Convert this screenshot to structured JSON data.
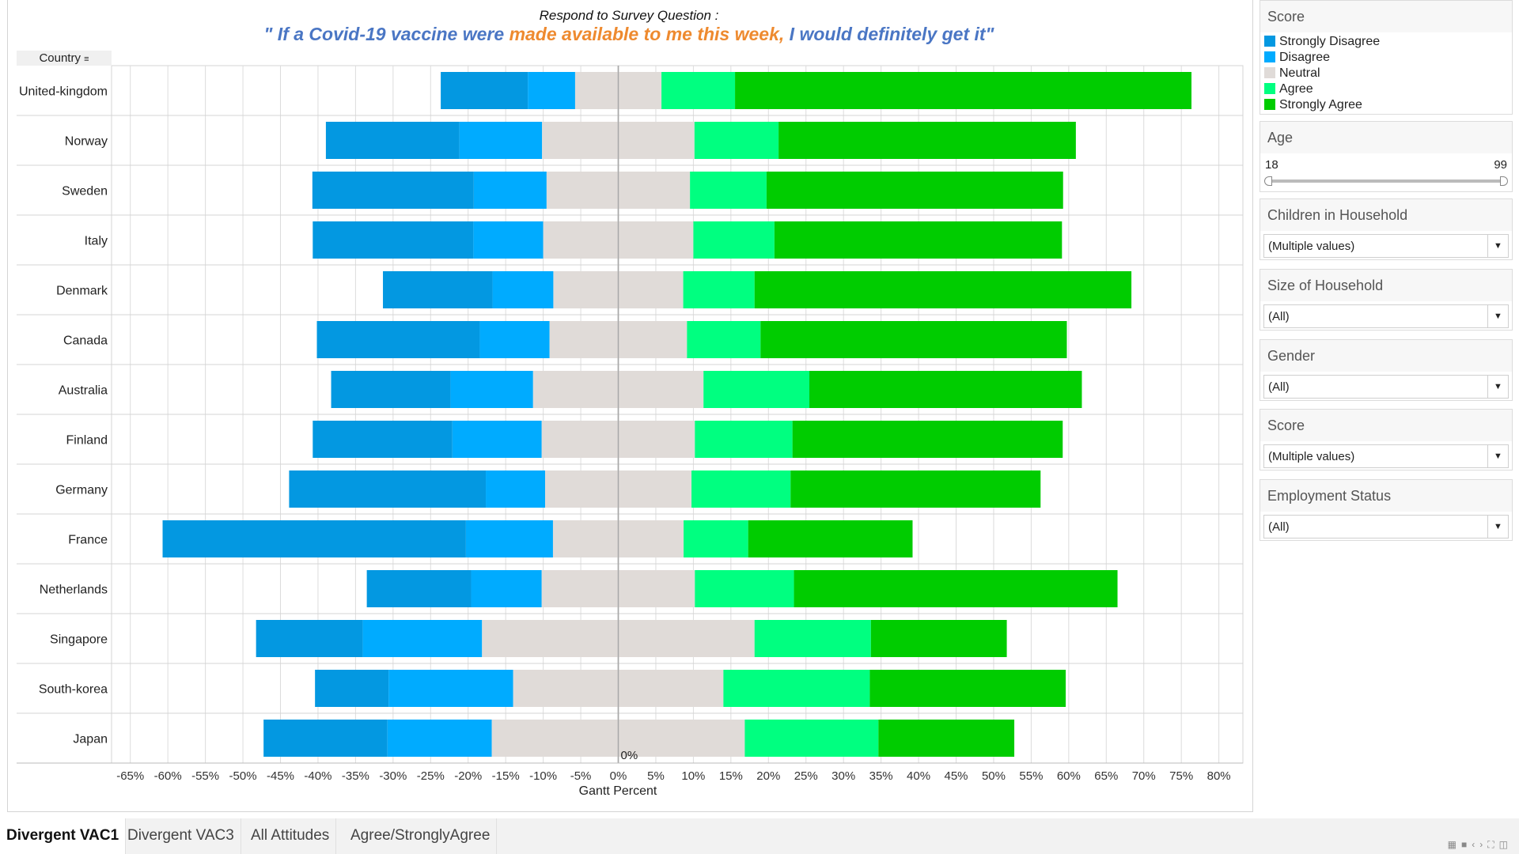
{
  "chart_data": {
    "type": "bar",
    "orientation": "horizontal-diverging-stacked",
    "title_line1": "Respond to Survey Question :",
    "title_line2_parts": [
      "\" If a Covid-19 vaccine were ",
      "made available to me this week,",
      " I would definitely get it\""
    ],
    "xlabel": "Gantt Percent",
    "row_header": "Country",
    "xlim": [
      -67.5,
      83.2
    ],
    "xticks": [
      -65,
      -60,
      -55,
      -50,
      -45,
      -40,
      -35,
      -30,
      -25,
      -20,
      -15,
      -10,
      -5,
      0,
      5,
      10,
      15,
      20,
      25,
      30,
      35,
      40,
      45,
      50,
      55,
      60,
      65,
      70,
      75,
      80
    ],
    "zero_label": "0%",
    "grid": true,
    "legend_placement": "right",
    "categories": [
      "United-kingdom",
      "Norway",
      "Sweden",
      "Italy",
      "Denmark",
      "Canada",
      "Australia",
      "Finland",
      "Germany",
      "France",
      "Netherlands",
      "Singapore",
      "South-korea",
      "Japan"
    ],
    "series": [
      {
        "name": "Strongly Disagree",
        "color": "#0398e1",
        "values": [
          11.6,
          17.8,
          21.5,
          21.4,
          14.6,
          21.7,
          15.9,
          18.6,
          26.2,
          40.4,
          13.9,
          14.2,
          9.8,
          16.5
        ]
      },
      {
        "name": "Disagree",
        "color": "#00abff",
        "values": [
          6.3,
          11.0,
          9.7,
          9.3,
          8.1,
          9.3,
          11.0,
          11.9,
          7.9,
          11.6,
          9.4,
          15.9,
          16.6,
          13.9
        ]
      },
      {
        "name": "Neutral",
        "color": "#e0dbd8",
        "values": [
          11.5,
          20.3,
          19.1,
          20.0,
          17.3,
          18.3,
          22.7,
          20.4,
          19.5,
          17.4,
          20.4,
          36.3,
          28.0,
          33.7
        ]
      },
      {
        "name": "Agree",
        "color": "#00ff80",
        "values": [
          9.8,
          11.2,
          10.2,
          10.8,
          9.5,
          9.8,
          14.1,
          13.0,
          13.2,
          8.6,
          13.2,
          15.5,
          19.5,
          17.8
        ]
      },
      {
        "name": "Strongly Agree",
        "color": "#00cc00",
        "values": [
          60.8,
          39.6,
          39.5,
          38.3,
          50.2,
          40.8,
          36.3,
          36.0,
          33.3,
          21.9,
          43.1,
          18.1,
          26.1,
          18.1
        ]
      }
    ]
  },
  "legend": {
    "title": "Score",
    "items": [
      "Strongly Disagree",
      "Disagree",
      "Neutral",
      "Agree",
      "Strongly Agree"
    ]
  },
  "filters": {
    "age": {
      "title": "Age",
      "min": "18",
      "max": "99",
      "range": [
        18,
        99
      ]
    },
    "children": {
      "title": "Children in Household",
      "value": "(Multiple values)"
    },
    "size": {
      "title": "Size of Household",
      "value": "(All)"
    },
    "gender": {
      "title": "Gender",
      "value": "(All)"
    },
    "score": {
      "title": "Score",
      "value": "(Multiple values)"
    },
    "employment": {
      "title": "Employment Status",
      "value": "(All)"
    }
  },
  "tabs": [
    "Divergent VAC1",
    "Divergent VAC3",
    "All Attitudes",
    "Agree/StronglyAgree"
  ]
}
